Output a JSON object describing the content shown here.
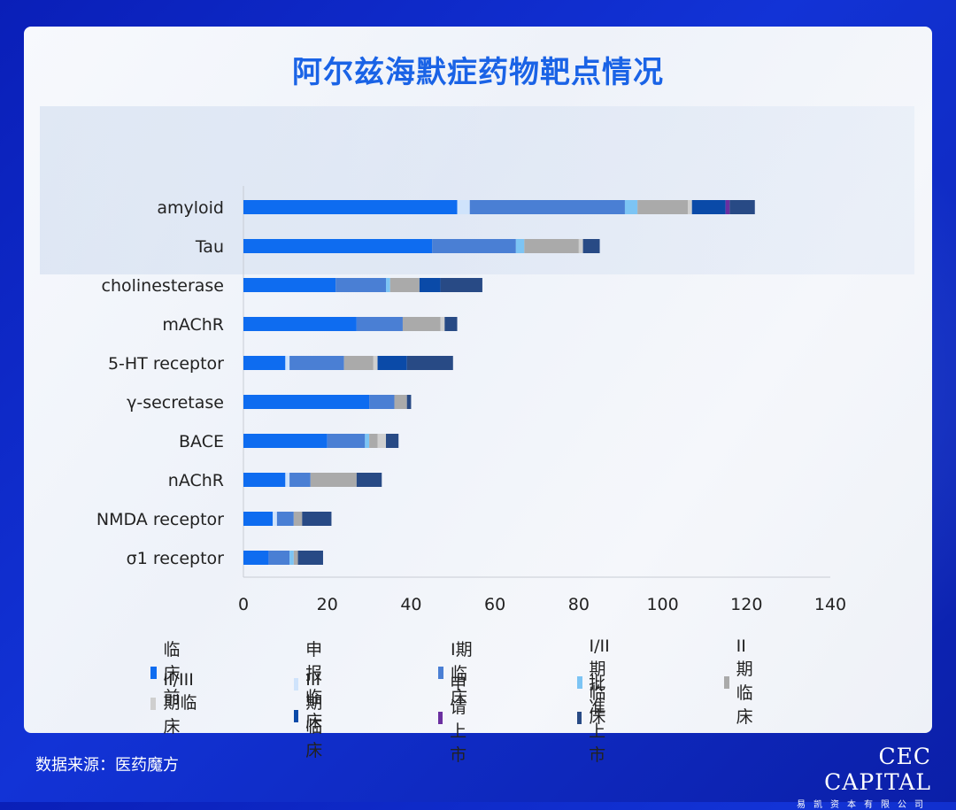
{
  "title": "阿尔兹海默症药物靶点情况",
  "source": "数据来源：医药魔方",
  "logo": {
    "main": "CEC CAPITAL",
    "sub": "易凯资本有限公司"
  },
  "chart_data": {
    "type": "bar",
    "orientation": "horizontal",
    "stacked": true,
    "categories": [
      "amyloid",
      "Tau",
      "cholinesterase",
      "mAChR",
      "5-HT receptor",
      "γ-secretase",
      "BACE",
      "nAChR",
      "NMDA receptor",
      "σ1 receptor"
    ],
    "xlim": [
      0,
      140
    ],
    "xticks": [
      "0",
      "20",
      "40",
      "60",
      "80",
      "100",
      "120",
      "140"
    ],
    "legend_position": "bottom",
    "series": [
      {
        "name": "临床前",
        "color": "#0e6cf0",
        "values": [
          51,
          45,
          22,
          27,
          10,
          30,
          20,
          10,
          7,
          6
        ]
      },
      {
        "name": "申报临床",
        "color": "#cfe3fb",
        "values": [
          3,
          0,
          0,
          0,
          1,
          0,
          0,
          1,
          1,
          0
        ]
      },
      {
        "name": "I期临床",
        "color": "#4a7fd4",
        "values": [
          37,
          20,
          12,
          11,
          13,
          6,
          9,
          5,
          4,
          5
        ]
      },
      {
        "name": "I/II期临床",
        "color": "#7cc4f4",
        "values": [
          3,
          2,
          1,
          0,
          0,
          0,
          1,
          0,
          0,
          1
        ]
      },
      {
        "name": "II期临床",
        "color": "#aaaaaa",
        "values": [
          12,
          13,
          7,
          9,
          7,
          3,
          2,
          11,
          2,
          1
        ]
      },
      {
        "name": "II/III期临床",
        "color": "#cfcfcf",
        "values": [
          1,
          1,
          0,
          1,
          1,
          0,
          2,
          0,
          0,
          0
        ]
      },
      {
        "name": "III期临床",
        "color": "#0a4aa8",
        "values": [
          8,
          0,
          5,
          0,
          7,
          0,
          0,
          0,
          0,
          0
        ]
      },
      {
        "name": "申请上市",
        "color": "#6b2fa0",
        "values": [
          1,
          0,
          0,
          0,
          0,
          0,
          0,
          0,
          0,
          0
        ]
      },
      {
        "name": "批准上市",
        "color": "#284a85",
        "values": [
          6,
          4,
          10,
          3,
          11,
          1,
          3,
          6,
          7,
          6
        ]
      }
    ]
  }
}
